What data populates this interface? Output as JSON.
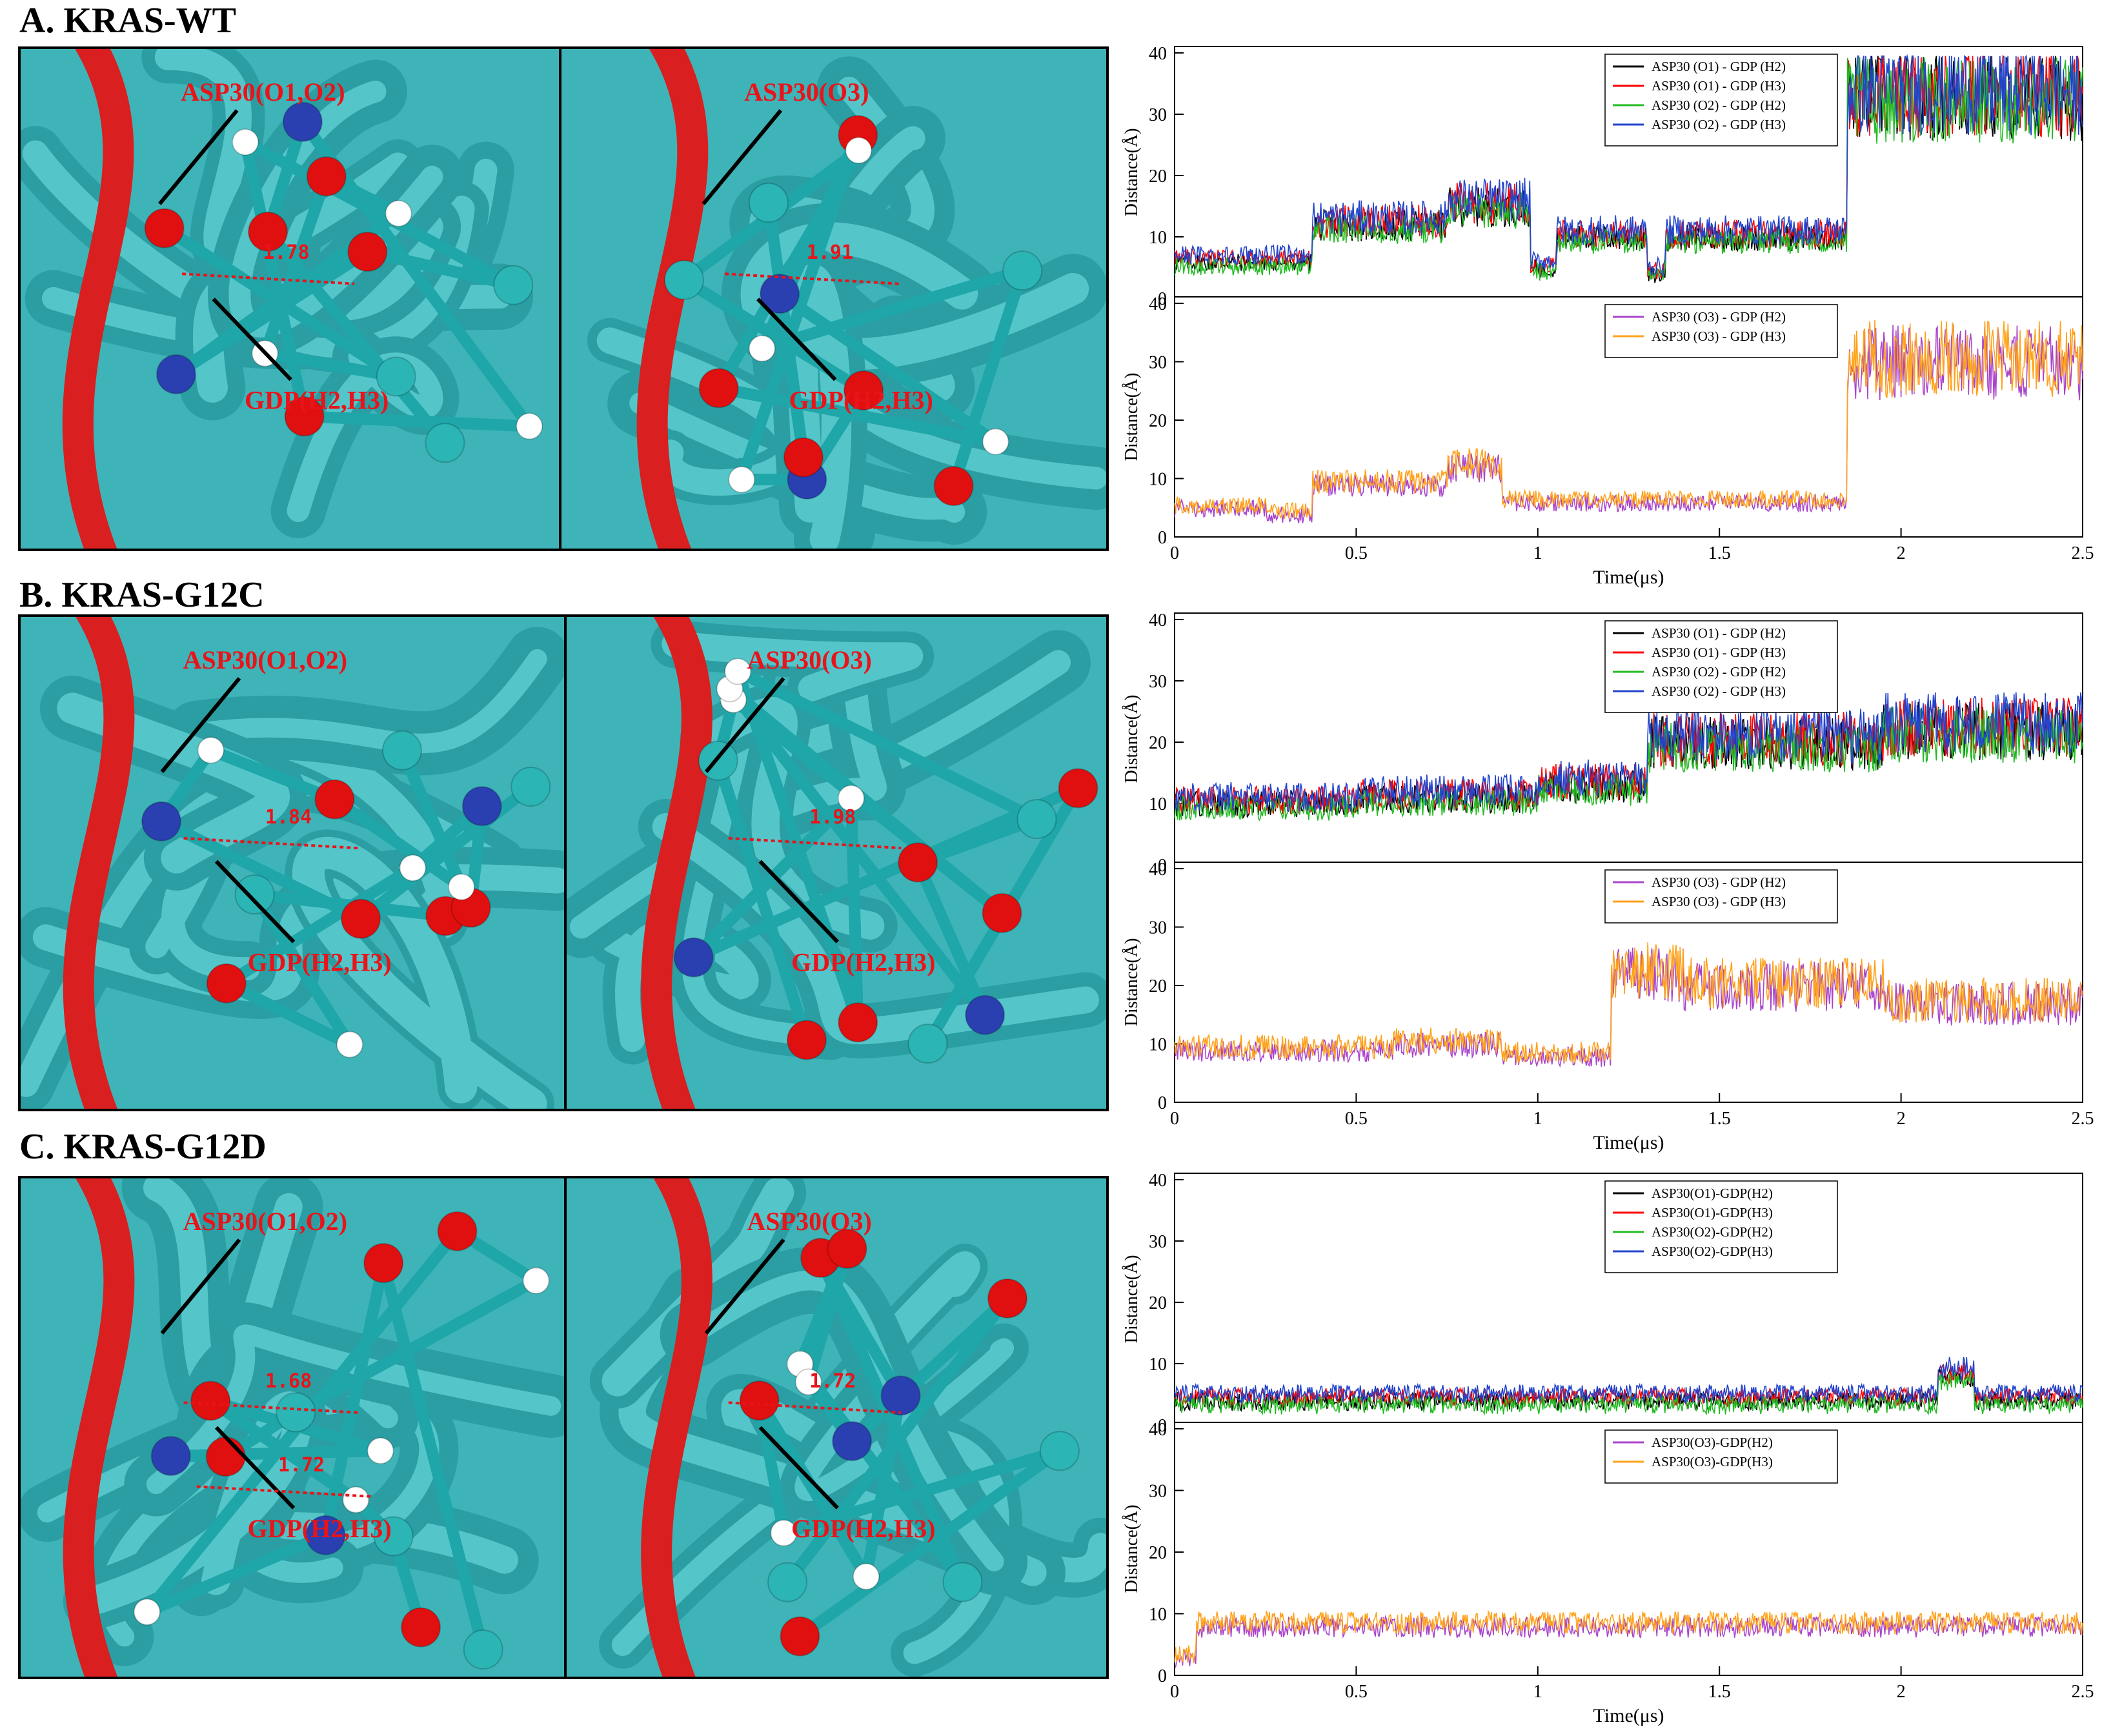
{
  "figure": {
    "panels": [
      {
        "id": "A",
        "title": "A. KRAS-WT",
        "left_image": {
          "labels": [
            "ASP30(O1,O2)",
            "GDP(H2,H3)"
          ],
          "distances": [
            "1.78"
          ]
        },
        "right_image": {
          "labels": [
            "ASP30(O3)",
            "GDP(H2,H3)"
          ],
          "distances": [
            "1.91"
          ]
        }
      },
      {
        "id": "B",
        "title": "B. KRAS-G12C",
        "left_image": {
          "labels": [
            "ASP30(O1,O2)",
            "GDP(H2,H3)"
          ],
          "distances": [
            "1.84"
          ]
        },
        "right_image": {
          "labels": [
            "ASP30(O3)",
            "GDP(H2,H3)"
          ],
          "distances": [
            "1.98"
          ]
        }
      },
      {
        "id": "C",
        "title": "C. KRAS-G12D",
        "left_image": {
          "labels": [
            "ASP30(O1,O2)",
            "GDP(H2,H3)"
          ],
          "distances": [
            "1.68",
            "1.72"
          ]
        },
        "right_image": {
          "labels": [
            "ASP30(O3)",
            "GDP(H2,H3)"
          ],
          "distances": [
            "1.72"
          ]
        }
      }
    ]
  },
  "chart_data": [
    {
      "panel": "A",
      "position": "top",
      "type": "line",
      "ylabel": "Distance(Å)",
      "xlabel": "",
      "ylim": [
        0,
        40
      ],
      "xlim": [
        0,
        2.5
      ],
      "yticks": [
        0,
        10,
        20,
        30,
        40
      ],
      "series": [
        {
          "name": "ASP30 (O1) - GDP (H2)",
          "color": "#000000"
        },
        {
          "name": "ASP30 (O1) - GDP (H3)",
          "color": "#ff0000"
        },
        {
          "name": "ASP30 (O2) - GDP (H2)",
          "color": "#22bb22"
        },
        {
          "name": "ASP30 (O2) - GDP (H3)",
          "color": "#2244cc"
        }
      ],
      "segments": [
        {
          "x": [
            0,
            0.38
          ],
          "y": 6
        },
        {
          "x": [
            0.38,
            0.75
          ],
          "y": 12
        },
        {
          "x": [
            0.75,
            0.98
          ],
          "y": 15
        },
        {
          "x": [
            0.98,
            1.05
          ],
          "y": 5
        },
        {
          "x": [
            1.05,
            1.3
          ],
          "y": 10
        },
        {
          "x": [
            1.3,
            1.35
          ],
          "y": 4
        },
        {
          "x": [
            1.35,
            1.85
          ],
          "y": 10
        },
        {
          "x": [
            1.85,
            2.5
          ],
          "y": 33
        }
      ]
    },
    {
      "panel": "A",
      "position": "bottom",
      "type": "line",
      "ylabel": "Distance(Å)",
      "xlabel": "Time(μs)",
      "ylim": [
        0,
        40
      ],
      "xlim": [
        0,
        2.5
      ],
      "yticks": [
        0,
        10,
        20,
        30,
        40
      ],
      "xticks": [
        0,
        0.5,
        1,
        1.5,
        2,
        2.5
      ],
      "series": [
        {
          "name": "ASP30 (O3) - GDP (H2)",
          "color": "#aa44cc"
        },
        {
          "name": "ASP30 (O3) - GDP (H3)",
          "color": "#ffa21c"
        }
      ],
      "segments": [
        {
          "x": [
            0,
            0.25
          ],
          "y": 5
        },
        {
          "x": [
            0.25,
            0.38
          ],
          "y": 4
        },
        {
          "x": [
            0.38,
            0.75
          ],
          "y": 9
        },
        {
          "x": [
            0.75,
            0.9
          ],
          "y": 12
        },
        {
          "x": [
            0.9,
            1.3
          ],
          "y": 6
        },
        {
          "x": [
            1.3,
            1.85
          ],
          "y": 6
        },
        {
          "x": [
            1.85,
            2.5
          ],
          "y": 30
        }
      ]
    },
    {
      "panel": "B",
      "position": "top",
      "type": "line",
      "ylabel": "Distance(Å)",
      "xlabel": "",
      "ylim": [
        0,
        40
      ],
      "xlim": [
        0,
        2.5
      ],
      "yticks": [
        0,
        10,
        20,
        30,
        40
      ],
      "series": [
        {
          "name": "ASP30 (O1) - GDP (H2)",
          "color": "#000000"
        },
        {
          "name": "ASP30 (O1) - GDP (H3)",
          "color": "#ff0000"
        },
        {
          "name": "ASP30 (O2) - GDP (H2)",
          "color": "#22bb22"
        },
        {
          "name": "ASP30 (O2) - GDP (H3)",
          "color": "#2244cc"
        }
      ],
      "segments": [
        {
          "x": [
            0,
            0.5
          ],
          "y": 10
        },
        {
          "x": [
            0.5,
            1.0
          ],
          "y": 11
        },
        {
          "x": [
            1.0,
            1.3
          ],
          "y": 13
        },
        {
          "x": [
            1.3,
            1.95
          ],
          "y": 20
        },
        {
          "x": [
            1.95,
            2.5
          ],
          "y": 22
        }
      ]
    },
    {
      "panel": "B",
      "position": "bottom",
      "type": "line",
      "ylabel": "Distance(Å)",
      "xlabel": "Time(μs)",
      "ylim": [
        0,
        40
      ],
      "xlim": [
        0,
        2.5
      ],
      "yticks": [
        0,
        10,
        20,
        30,
        40
      ],
      "xticks": [
        0,
        0.5,
        1,
        1.5,
        2,
        2.5
      ],
      "series": [
        {
          "name": "ASP30 (O3) - GDP (H2)",
          "color": "#aa44cc"
        },
        {
          "name": "ASP30 (O3) - GDP (H3)",
          "color": "#ffa21c"
        }
      ],
      "segments": [
        {
          "x": [
            0,
            0.6
          ],
          "y": 9
        },
        {
          "x": [
            0.6,
            0.9
          ],
          "y": 10
        },
        {
          "x": [
            0.9,
            1.2
          ],
          "y": 8
        },
        {
          "x": [
            1.2,
            1.4
          ],
          "y": 22
        },
        {
          "x": [
            1.4,
            1.95
          ],
          "y": 20
        },
        {
          "x": [
            1.95,
            2.5
          ],
          "y": 17
        }
      ]
    },
    {
      "panel": "C",
      "position": "top",
      "type": "line",
      "ylabel": "Distance(Å)",
      "xlabel": "",
      "ylim": [
        0,
        40
      ],
      "xlim": [
        0,
        2.5
      ],
      "yticks": [
        0,
        10,
        20,
        30,
        40
      ],
      "series": [
        {
          "name": "ASP30(O1)-GDP(H2)",
          "color": "#000000"
        },
        {
          "name": "ASP30(O1)-GDP(H3)",
          "color": "#ff0000"
        },
        {
          "name": "ASP30(O2)-GDP(H2)",
          "color": "#22bb22"
        },
        {
          "name": "ASP30(O2)-GDP(H3)",
          "color": "#2244cc"
        }
      ],
      "segments": [
        {
          "x": [
            0,
            2.1
          ],
          "y": 4
        },
        {
          "x": [
            2.1,
            2.2
          ],
          "y": 8
        },
        {
          "x": [
            2.2,
            2.5
          ],
          "y": 4
        }
      ]
    },
    {
      "panel": "C",
      "position": "bottom",
      "type": "line",
      "ylabel": "Distance(Å)",
      "xlabel": "Time(μs)",
      "ylim": [
        0,
        40
      ],
      "xlim": [
        0,
        2.5
      ],
      "yticks": [
        0,
        10,
        20,
        30,
        40
      ],
      "xticks": [
        0,
        0.5,
        1,
        1.5,
        2,
        2.5
      ],
      "series": [
        {
          "name": "ASP30(O3)-GDP(H2)",
          "color": "#aa44cc"
        },
        {
          "name": "ASP30(O3)-GDP(H3)",
          "color": "#ffa21c"
        }
      ],
      "segments": [
        {
          "x": [
            0,
            0.06
          ],
          "y": 3
        },
        {
          "x": [
            0.06,
            2.5
          ],
          "y": 8
        }
      ]
    }
  ]
}
